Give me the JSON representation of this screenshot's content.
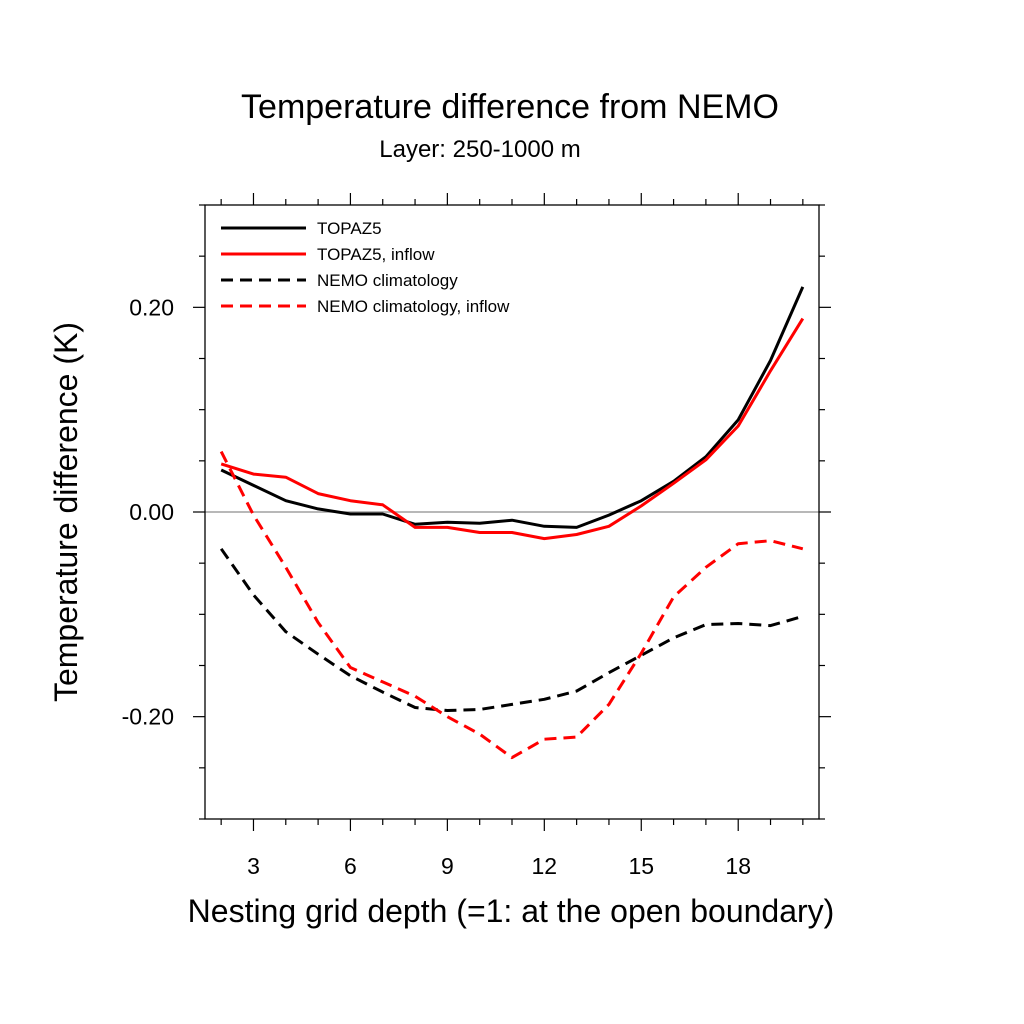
{
  "chart_data": {
    "type": "line",
    "title": "Temperature difference from NEMO",
    "subtitle": "Layer: 250-1000 m",
    "xlabel": "Nesting grid depth (=1: at the open boundary)",
    "ylabel": "Temperature difference (K)",
    "xlim": [
      1.5,
      20.5
    ],
    "ylim": [
      -0.3,
      0.3
    ],
    "xticks": [
      3,
      6,
      9,
      12,
      15,
      18
    ],
    "xtick_labels": [
      "3",
      "6",
      "9",
      "12",
      "15",
      "18"
    ],
    "yticks": [
      -0.2,
      0.0,
      0.2
    ],
    "ytick_labels": [
      "-0.20",
      "0.00",
      "0.20"
    ],
    "reference_line": 0.0,
    "legend_position": "top-left",
    "x": [
      2,
      3,
      4,
      5,
      6,
      7,
      8,
      9,
      10,
      11,
      12,
      13,
      14,
      15,
      16,
      17,
      18,
      19,
      20
    ],
    "series": [
      {
        "name": "TOPAZ5",
        "color": "#000000",
        "dash": "solid",
        "values": [
          0.041,
          0.026,
          0.011,
          0.003,
          -0.002,
          -0.002,
          -0.012,
          -0.01,
          -0.011,
          -0.008,
          -0.014,
          -0.015,
          -0.003,
          0.011,
          0.03,
          0.054,
          0.09,
          0.148,
          0.22
        ]
      },
      {
        "name": "TOPAZ5, inflow",
        "color": "#ff0000",
        "dash": "solid",
        "values": [
          0.047,
          0.037,
          0.034,
          0.018,
          0.011,
          0.007,
          -0.015,
          -0.015,
          -0.02,
          -0.02,
          -0.026,
          -0.022,
          -0.014,
          0.006,
          0.028,
          0.051,
          0.084,
          0.138,
          0.189
        ]
      },
      {
        "name": "NEMO climatology",
        "color": "#000000",
        "dash": "dashed",
        "values": [
          -0.036,
          -0.081,
          -0.117,
          -0.139,
          -0.16,
          -0.176,
          -0.191,
          -0.194,
          -0.193,
          -0.188,
          -0.183,
          -0.175,
          -0.157,
          -0.14,
          -0.123,
          -0.11,
          -0.109,
          -0.111,
          -0.102
        ]
      },
      {
        "name": "NEMO climatology, inflow",
        "color": "#ff0000",
        "dash": "dashed",
        "values": [
          0.059,
          -0.003,
          -0.054,
          -0.108,
          -0.152,
          -0.166,
          -0.18,
          -0.2,
          -0.217,
          -0.24,
          -0.222,
          -0.22,
          -0.188,
          -0.138,
          -0.083,
          -0.054,
          -0.031,
          -0.028,
          -0.036
        ]
      }
    ]
  }
}
